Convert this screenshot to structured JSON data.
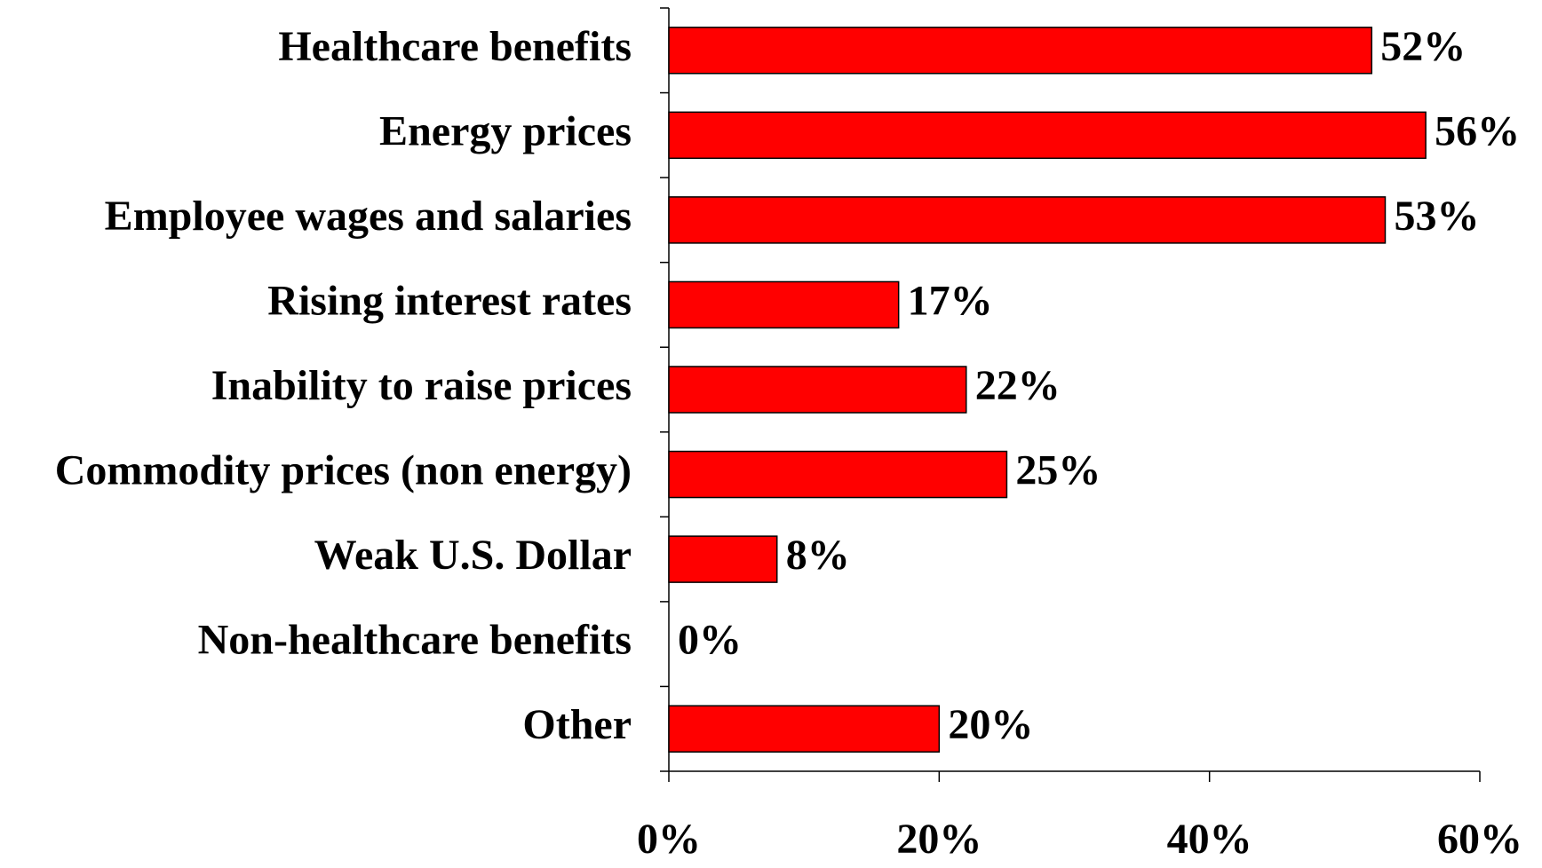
{
  "chart_data": {
    "type": "hbar",
    "categories": [
      "Healthcare benefits",
      "Energy prices",
      "Employee wages and salaries",
      "Rising interest rates",
      "Inability to raise prices",
      "Commodity prices (non energy)",
      "Weak U.S. Dollar",
      "Non-healthcare benefits",
      "Other"
    ],
    "values": [
      52,
      56,
      53,
      17,
      22,
      25,
      8,
      0,
      20
    ],
    "value_labels": [
      "52%",
      "56%",
      "53%",
      "17%",
      "22%",
      "25%",
      "8%",
      "0%",
      "20%"
    ],
    "color": "#ff0000",
    "xlim": [
      0,
      60
    ],
    "xticks": [
      {
        "value": 0,
        "label": "0%"
      },
      {
        "value": 20,
        "label": "20%"
      },
      {
        "value": 40,
        "label": "40%"
      },
      {
        "value": 60,
        "label": "60%"
      }
    ]
  }
}
